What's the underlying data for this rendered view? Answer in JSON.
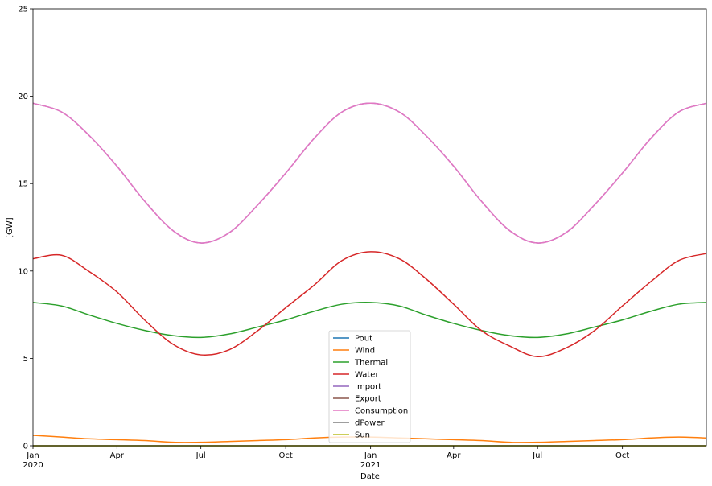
{
  "chart_data": {
    "type": "line",
    "xlabel": "Date",
    "ylabel": "[GW]",
    "xlim": [
      "2020-01-01",
      "2021-12-31"
    ],
    "ylim": [
      0,
      25
    ],
    "yticks": [
      0,
      5,
      10,
      15,
      20,
      25
    ],
    "xticks": [
      {
        "date": "2020-01-01",
        "label": "Jan",
        "sublabel": "2020"
      },
      {
        "date": "2020-04-01",
        "label": "Apr",
        "sublabel": ""
      },
      {
        "date": "2020-07-01",
        "label": "Jul",
        "sublabel": ""
      },
      {
        "date": "2020-10-01",
        "label": "Oct",
        "sublabel": ""
      },
      {
        "date": "2021-01-01",
        "label": "Jan",
        "sublabel": "2021"
      },
      {
        "date": "2021-04-01",
        "label": "Apr",
        "sublabel": ""
      },
      {
        "date": "2021-07-01",
        "label": "Jul",
        "sublabel": ""
      },
      {
        "date": "2021-10-01",
        "label": "Oct",
        "sublabel": ""
      }
    ],
    "grid": false,
    "legend_position": "lower-center",
    "series": [
      {
        "name": "Pout",
        "color": "#1f77b4",
        "points": [
          [
            "2020-01-01",
            0
          ],
          [
            "2021-12-31",
            0
          ]
        ]
      },
      {
        "name": "Wind",
        "color": "#ff7f0e",
        "points": [
          [
            "2020-01-01",
            0.6
          ],
          [
            "2020-02-01",
            0.5
          ],
          [
            "2020-03-01",
            0.4
          ],
          [
            "2020-04-01",
            0.35
          ],
          [
            "2020-05-01",
            0.3
          ],
          [
            "2020-06-01",
            0.2
          ],
          [
            "2020-07-01",
            0.2
          ],
          [
            "2020-08-01",
            0.25
          ],
          [
            "2020-09-01",
            0.3
          ],
          [
            "2020-10-01",
            0.35
          ],
          [
            "2020-11-01",
            0.45
          ],
          [
            "2020-12-01",
            0.5
          ],
          [
            "2021-01-01",
            0.5
          ],
          [
            "2021-02-01",
            0.45
          ],
          [
            "2021-03-01",
            0.4
          ],
          [
            "2021-04-01",
            0.35
          ],
          [
            "2021-05-01",
            0.3
          ],
          [
            "2021-06-01",
            0.2
          ],
          [
            "2021-07-01",
            0.2
          ],
          [
            "2021-08-01",
            0.25
          ],
          [
            "2021-09-01",
            0.3
          ],
          [
            "2021-10-01",
            0.35
          ],
          [
            "2021-11-01",
            0.45
          ],
          [
            "2021-12-01",
            0.5
          ],
          [
            "2021-12-31",
            0.45
          ]
        ]
      },
      {
        "name": "Thermal",
        "color": "#2ca02c",
        "points": [
          [
            "2020-01-01",
            8.2
          ],
          [
            "2020-02-01",
            8.0
          ],
          [
            "2020-03-01",
            7.5
          ],
          [
            "2020-04-01",
            7.0
          ],
          [
            "2020-05-01",
            6.6
          ],
          [
            "2020-06-01",
            6.3
          ],
          [
            "2020-07-01",
            6.2
          ],
          [
            "2020-08-01",
            6.4
          ],
          [
            "2020-09-01",
            6.8
          ],
          [
            "2020-10-01",
            7.2
          ],
          [
            "2020-11-01",
            7.7
          ],
          [
            "2020-12-01",
            8.1
          ],
          [
            "2021-01-01",
            8.2
          ],
          [
            "2021-02-01",
            8.0
          ],
          [
            "2021-03-01",
            7.5
          ],
          [
            "2021-04-01",
            7.0
          ],
          [
            "2021-05-01",
            6.6
          ],
          [
            "2021-06-01",
            6.3
          ],
          [
            "2021-07-01",
            6.2
          ],
          [
            "2021-08-01",
            6.4
          ],
          [
            "2021-09-01",
            6.8
          ],
          [
            "2021-10-01",
            7.2
          ],
          [
            "2021-11-01",
            7.7
          ],
          [
            "2021-12-01",
            8.1
          ],
          [
            "2021-12-31",
            8.2
          ]
        ]
      },
      {
        "name": "Water",
        "color": "#d62728",
        "points": [
          [
            "2020-01-01",
            10.7
          ],
          [
            "2020-02-01",
            10.9
          ],
          [
            "2020-03-01",
            10.0
          ],
          [
            "2020-04-01",
            8.8
          ],
          [
            "2020-05-01",
            7.2
          ],
          [
            "2020-06-01",
            5.8
          ],
          [
            "2020-07-01",
            5.2
          ],
          [
            "2020-08-01",
            5.5
          ],
          [
            "2020-09-01",
            6.6
          ],
          [
            "2020-10-01",
            7.9
          ],
          [
            "2020-11-01",
            9.2
          ],
          [
            "2020-12-01",
            10.6
          ],
          [
            "2021-01-01",
            11.1
          ],
          [
            "2021-02-01",
            10.7
          ],
          [
            "2021-03-01",
            9.6
          ],
          [
            "2021-04-01",
            8.1
          ],
          [
            "2021-05-01",
            6.6
          ],
          [
            "2021-06-01",
            5.7
          ],
          [
            "2021-07-01",
            5.1
          ],
          [
            "2021-08-01",
            5.6
          ],
          [
            "2021-09-01",
            6.6
          ],
          [
            "2021-10-01",
            8.0
          ],
          [
            "2021-11-01",
            9.4
          ],
          [
            "2021-12-01",
            10.6
          ],
          [
            "2021-12-31",
            11.0
          ]
        ]
      },
      {
        "name": "Import",
        "color": "#9467bd",
        "points": [
          [
            "2020-01-01",
            19.6
          ],
          [
            "2020-02-01",
            19.1
          ],
          [
            "2020-03-01",
            17.8
          ],
          [
            "2020-04-01",
            16.0
          ],
          [
            "2020-05-01",
            14.0
          ],
          [
            "2020-06-01",
            12.3
          ],
          [
            "2020-07-01",
            11.6
          ],
          [
            "2020-08-01",
            12.2
          ],
          [
            "2020-09-01",
            13.8
          ],
          [
            "2020-10-01",
            15.6
          ],
          [
            "2020-11-01",
            17.6
          ],
          [
            "2020-12-01",
            19.1
          ],
          [
            "2021-01-01",
            19.6
          ],
          [
            "2021-02-01",
            19.1
          ],
          [
            "2021-03-01",
            17.8
          ],
          [
            "2021-04-01",
            16.0
          ],
          [
            "2021-05-01",
            14.0
          ],
          [
            "2021-06-01",
            12.3
          ],
          [
            "2021-07-01",
            11.6
          ],
          [
            "2021-08-01",
            12.2
          ],
          [
            "2021-09-01",
            13.8
          ],
          [
            "2021-10-01",
            15.6
          ],
          [
            "2021-11-01",
            17.6
          ],
          [
            "2021-12-01",
            19.1
          ],
          [
            "2021-12-31",
            19.6
          ]
        ]
      },
      {
        "name": "Export",
        "color": "#8c564b",
        "points": [
          [
            "2020-01-01",
            0
          ],
          [
            "2021-12-31",
            0
          ]
        ]
      },
      {
        "name": "Consumption",
        "color": "#e377c2",
        "points": [
          [
            "2020-01-01",
            19.6
          ],
          [
            "2020-02-01",
            19.1
          ],
          [
            "2020-03-01",
            17.8
          ],
          [
            "2020-04-01",
            16.0
          ],
          [
            "2020-05-01",
            14.0
          ],
          [
            "2020-06-01",
            12.3
          ],
          [
            "2020-07-01",
            11.6
          ],
          [
            "2020-08-01",
            12.2
          ],
          [
            "2020-09-01",
            13.8
          ],
          [
            "2020-10-01",
            15.6
          ],
          [
            "2020-11-01",
            17.6
          ],
          [
            "2020-12-01",
            19.1
          ],
          [
            "2021-01-01",
            19.6
          ],
          [
            "2021-02-01",
            19.1
          ],
          [
            "2021-03-01",
            17.8
          ],
          [
            "2021-04-01",
            16.0
          ],
          [
            "2021-05-01",
            14.0
          ],
          [
            "2021-06-01",
            12.3
          ],
          [
            "2021-07-01",
            11.6
          ],
          [
            "2021-08-01",
            12.2
          ],
          [
            "2021-09-01",
            13.8
          ],
          [
            "2021-10-01",
            15.6
          ],
          [
            "2021-11-01",
            17.6
          ],
          [
            "2021-12-01",
            19.1
          ],
          [
            "2021-12-31",
            19.6
          ]
        ]
      },
      {
        "name": "dPower",
        "color": "#7f7f7f",
        "points": [
          [
            "2020-01-01",
            0
          ],
          [
            "2021-12-31",
            0
          ]
        ]
      },
      {
        "name": "Sun",
        "color": "#bcbd22",
        "points": [
          [
            "2020-01-01",
            0
          ],
          [
            "2021-12-31",
            0
          ]
        ]
      }
    ]
  }
}
